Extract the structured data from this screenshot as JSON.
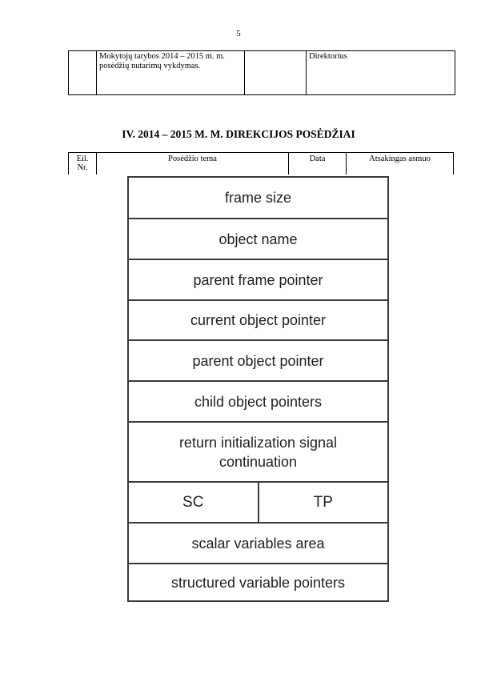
{
  "page_number": "5",
  "top_table": {
    "cells": [
      "",
      "Mokytojų tarybos 2014 – 2015 m. m.  posėdžių nutarimų vykdymas.",
      "",
      "Direktorius"
    ]
  },
  "section_heading": "IV. 2014 – 2015  M. M. DIREKCIJOS POSĖDŽIAI",
  "header_table": {
    "columns": [
      "Eil. Nr.",
      "Posėdžio tema",
      "Data",
      "Atsakingas asmuo"
    ]
  },
  "frame_diagram": {
    "rows": [
      "frame size",
      "object name",
      "parent frame pointer",
      "current object pointer",
      "parent object pointer",
      "child object pointers",
      "return initialization signal continuation",
      "",
      "scalar variables area",
      "structured variable pointers"
    ],
    "split_row": {
      "left": "SC",
      "right": "TP"
    }
  }
}
